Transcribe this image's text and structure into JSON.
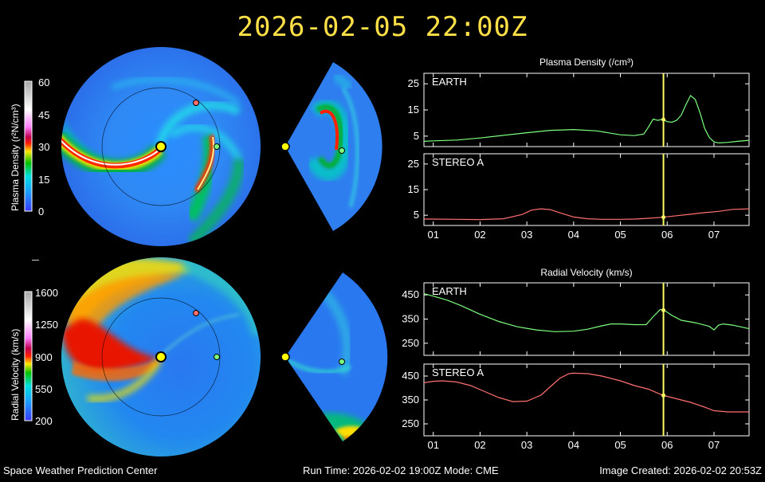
{
  "header": {
    "timestamp": "2026-02-05  22:00Z"
  },
  "footer": {
    "left": "Space Weather Prediction Center",
    "middle": "Run Time: 2026-02-02 19:00Z  Mode: CME",
    "right": "Image Created: 2026-02-02 20:53Z"
  },
  "colorbars": {
    "density": {
      "label": "Plasma Density (r²N/cm³)",
      "ticks": [
        "60",
        "45",
        "30",
        "15",
        "0"
      ]
    },
    "velocity": {
      "label": "Radial Velocity (km/s)",
      "ticks": [
        "1600",
        "1250",
        "900",
        "550",
        "200"
      ]
    }
  },
  "colors": {
    "earth_line": "#7dff7d",
    "stereo_line": "#ff7070",
    "time_marker": "#ffff66",
    "title": "#ffe046"
  },
  "chart_data": [
    {
      "type": "line",
      "title": "Plasma Density (/cm³)",
      "panel": "EARTH",
      "x_ticks": [
        "01",
        "02",
        "03",
        "04",
        "05",
        "06",
        "07"
      ],
      "xlim": [
        0.8,
        7.75
      ],
      "ylim": [
        1,
        29
      ],
      "y_ticks": [
        5,
        15,
        25
      ],
      "current_time": 5.92,
      "x": [
        0.8,
        1.0,
        1.5,
        2.0,
        2.5,
        3.0,
        3.5,
        4.0,
        4.5,
        5.0,
        5.3,
        5.5,
        5.6,
        5.7,
        5.8,
        5.9,
        6.0,
        6.1,
        6.2,
        6.3,
        6.4,
        6.5,
        6.6,
        6.7,
        6.8,
        6.9,
        7.0,
        7.1,
        7.3,
        7.5,
        7.75
      ],
      "y": [
        3.0,
        3.2,
        3.5,
        4.3,
        5.3,
        6.3,
        7.2,
        7.5,
        7.0,
        5.5,
        5.2,
        5.8,
        8.5,
        11.5,
        11.0,
        11.5,
        10.5,
        10.3,
        11.0,
        13.0,
        17.0,
        20.5,
        19.0,
        14.0,
        8.0,
        4.5,
        2.8,
        2.4,
        2.6,
        3.0,
        3.4
      ]
    },
    {
      "type": "line",
      "panel": "STEREO A",
      "x_ticks": [
        "01",
        "02",
        "03",
        "04",
        "05",
        "06",
        "07"
      ],
      "xlim": [
        0.8,
        7.75
      ],
      "ylim": [
        1,
        29
      ],
      "y_ticks": [
        5,
        15,
        25
      ],
      "current_time": 5.92,
      "x": [
        0.8,
        1.0,
        1.5,
        2.0,
        2.5,
        2.9,
        3.1,
        3.3,
        3.5,
        3.7,
        4.0,
        4.3,
        4.6,
        5.0,
        5.3,
        5.6,
        5.9,
        6.2,
        6.5,
        6.8,
        7.1,
        7.4,
        7.75
      ],
      "y": [
        3.5,
        3.5,
        3.4,
        3.3,
        3.6,
        5.3,
        7.0,
        7.5,
        7.2,
        6.0,
        4.3,
        3.6,
        3.4,
        3.4,
        3.5,
        3.8,
        4.2,
        4.8,
        5.4,
        6.0,
        6.5,
        7.3,
        7.5
      ]
    },
    {
      "type": "line",
      "title": "Radial Velocity (km/s)",
      "panel": "EARTH",
      "x_ticks": [
        "01",
        "02",
        "03",
        "04",
        "05",
        "06",
        "07"
      ],
      "xlim": [
        0.8,
        7.75
      ],
      "ylim": [
        200,
        500
      ],
      "y_ticks": [
        250,
        350,
        450
      ],
      "current_time": 5.92,
      "x": [
        0.8,
        1.0,
        1.3,
        1.6,
        2.0,
        2.4,
        2.8,
        3.2,
        3.6,
        4.0,
        4.3,
        4.6,
        4.8,
        5.0,
        5.3,
        5.55,
        5.7,
        5.85,
        5.95,
        6.1,
        6.3,
        6.6,
        6.9,
        7.0,
        7.1,
        7.2,
        7.4,
        7.75
      ],
      "y": [
        455,
        445,
        428,
        405,
        370,
        340,
        318,
        305,
        298,
        300,
        308,
        322,
        330,
        330,
        327,
        327,
        360,
        390,
        385,
        365,
        345,
        335,
        320,
        305,
        325,
        330,
        325,
        310
      ]
    },
    {
      "type": "line",
      "panel": "STEREO A",
      "x_ticks": [
        "01",
        "02",
        "03",
        "04",
        "05",
        "06",
        "07"
      ],
      "xlim": [
        0.8,
        7.75
      ],
      "ylim": [
        200,
        500
      ],
      "y_ticks": [
        250,
        350,
        450
      ],
      "current_time": 5.92,
      "x": [
        0.8,
        1.0,
        1.2,
        1.5,
        1.8,
        2.1,
        2.4,
        2.7,
        3.0,
        3.3,
        3.5,
        3.7,
        3.9,
        4.0,
        4.3,
        4.6,
        5.0,
        5.3,
        5.6,
        5.9,
        6.2,
        6.5,
        6.8,
        7.0,
        7.3,
        7.75
      ],
      "y": [
        422,
        428,
        430,
        425,
        410,
        385,
        360,
        343,
        345,
        370,
        405,
        440,
        460,
        462,
        460,
        450,
        430,
        410,
        395,
        370,
        355,
        340,
        320,
        305,
        300,
        300
      ]
    }
  ]
}
